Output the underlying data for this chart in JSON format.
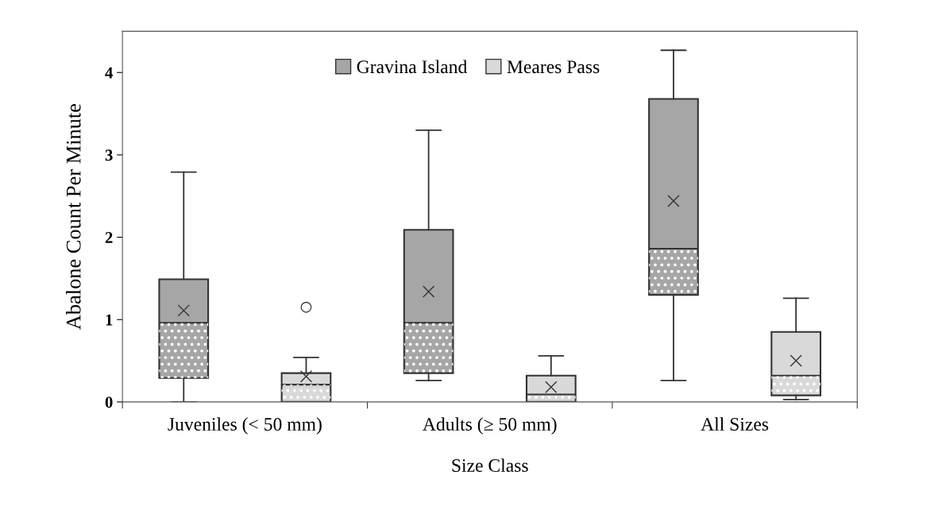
{
  "chart_data": {
    "type": "box",
    "xlabel": "Size Class",
    "ylabel": "Abalone Count Per Minute",
    "categories": [
      "Juveniles (< 50 mm)",
      "Adults (≥ 50 mm)",
      "All Sizes"
    ],
    "ylim": [
      0,
      4.5
    ],
    "yticks": [
      0,
      1,
      2,
      3,
      4
    ],
    "grid": false,
    "legend": "top",
    "series": [
      {
        "name": "Gravina Island",
        "color": "#a6a6a6",
        "boxes": [
          {
            "low": 0,
            "q1": 0.29,
            "median": 0.96,
            "q3": 1.49,
            "high": 2.79,
            "mean": 1.11
          },
          {
            "low": 0.26,
            "q1": 0.35,
            "median": 0.96,
            "q3": 2.09,
            "high": 3.3,
            "mean": 1.34
          },
          {
            "low": 0.26,
            "q1": 1.3,
            "median": 1.86,
            "q3": 3.68,
            "high": 4.27,
            "mean": 2.44
          }
        ]
      },
      {
        "name": "Meares Pass",
        "color": "#d9d9d9",
        "boxes": [
          {
            "low": 0,
            "q1": 0,
            "median": 0.21,
            "q3": 0.35,
            "high": 0.54,
            "mean": 0.31,
            "outliers": [
              1.15
            ]
          },
          {
            "low": 0,
            "q1": 0,
            "median": 0.09,
            "q3": 0.32,
            "high": 0.56,
            "mean": 0.18
          },
          {
            "low": 0.03,
            "q1": 0.08,
            "median": 0.32,
            "q3": 0.85,
            "high": 1.26,
            "mean": 0.5
          }
        ]
      }
    ]
  }
}
